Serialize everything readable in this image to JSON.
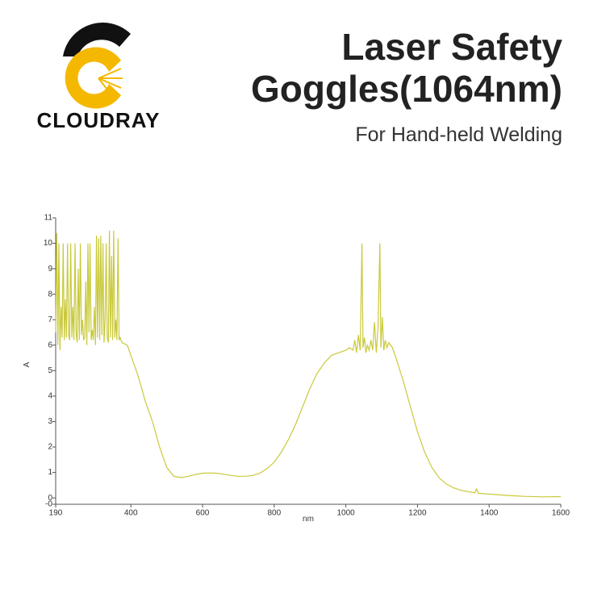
{
  "header": {
    "brand": "CLOUDRAY",
    "title_lines": [
      "Laser Safety",
      "Goggles(1064nm)"
    ],
    "subtitle": "For Hand-held Welding"
  },
  "chart_data": {
    "type": "line",
    "xlabel": "nm",
    "ylabel": "A",
    "color": "#c9c93c",
    "x": [
      190,
      193,
      196,
      199,
      202,
      205,
      208,
      211,
      214,
      217,
      220,
      223,
      226,
      229,
      232,
      235,
      238,
      241,
      244,
      247,
      250,
      253,
      256,
      259,
      262,
      265,
      268,
      271,
      274,
      277,
      280,
      283,
      286,
      289,
      292,
      295,
      298,
      301,
      304,
      307,
      310,
      313,
      316,
      319,
      322,
      325,
      328,
      331,
      334,
      337,
      340,
      343,
      346,
      349,
      352,
      355,
      358,
      361,
      364,
      367,
      370,
      375,
      390,
      400,
      420,
      440,
      460,
      480,
      500,
      520,
      540,
      560,
      580,
      600,
      620,
      640,
      660,
      680,
      700,
      720,
      740,
      760,
      780,
      800,
      820,
      840,
      860,
      880,
      900,
      920,
      940,
      960,
      980,
      1000,
      1010,
      1020,
      1025,
      1030,
      1035,
      1040,
      1045,
      1048,
      1052,
      1056,
      1060,
      1065,
      1070,
      1075,
      1080,
      1085,
      1090,
      1095,
      1098,
      1102,
      1106,
      1110,
      1115,
      1120,
      1130,
      1140,
      1160,
      1180,
      1200,
      1220,
      1240,
      1260,
      1280,
      1300,
      1320,
      1340,
      1360,
      1365,
      1370,
      1400,
      1450,
      1500,
      1550,
      1600
    ],
    "values": [
      6.5,
      10.4,
      6.0,
      10,
      5.8,
      7.5,
      6.3,
      10,
      6.2,
      7.8,
      6.3,
      10,
      6.4,
      6.2,
      10,
      6.3,
      7.5,
      6.2,
      10,
      6.5,
      6.1,
      9,
      6.2,
      10,
      6.4,
      7,
      6.2,
      6.3,
      8.5,
      6.0,
      10,
      6.5,
      10,
      6.2,
      6.6,
      6.2,
      7.5,
      6.0,
      10.3,
      6.3,
      10.2,
      6.2,
      10.3,
      6.4,
      10,
      6.1,
      7,
      10,
      6.3,
      6.1,
      10.5,
      6.3,
      9.5,
      6.2,
      10.5,
      6.3,
      7,
      6.2,
      10.2,
      6.2,
      6.3,
      6.1,
      6.0,
      5.6,
      4.8,
      3.8,
      3.0,
      2.0,
      1.2,
      0.85,
      0.8,
      0.85,
      0.92,
      0.97,
      0.98,
      0.97,
      0.93,
      0.88,
      0.85,
      0.85,
      0.88,
      0.97,
      1.15,
      1.4,
      1.8,
      2.3,
      2.9,
      3.6,
      4.3,
      4.9,
      5.3,
      5.6,
      5.7,
      5.8,
      5.9,
      5.8,
      6.2,
      5.7,
      6.4,
      5.8,
      10,
      5.9,
      6.3,
      5.7,
      6.0,
      5.8,
      6.2,
      5.8,
      6.9,
      5.7,
      6.8,
      10,
      5.9,
      7.1,
      5.8,
      6.2,
      5.9,
      6.1,
      5.9,
      5.5,
      4.6,
      3.6,
      2.6,
      1.8,
      1.2,
      0.8,
      0.55,
      0.4,
      0.3,
      0.25,
      0.2,
      0.35,
      0.18,
      0.15,
      0.1,
      0.06,
      0.04,
      0.05
    ],
    "xlim": [
      190,
      1600
    ],
    "xticks": [
      190,
      400,
      600,
      800,
      1000,
      1200,
      1400,
      1600
    ],
    "ylim": [
      -0.25,
      11
    ],
    "yticks": [
      {
        "value": -0.25,
        "label": "-0"
      },
      0,
      1,
      2,
      3,
      4,
      5,
      6,
      7,
      8,
      9,
      10,
      11
    ]
  }
}
